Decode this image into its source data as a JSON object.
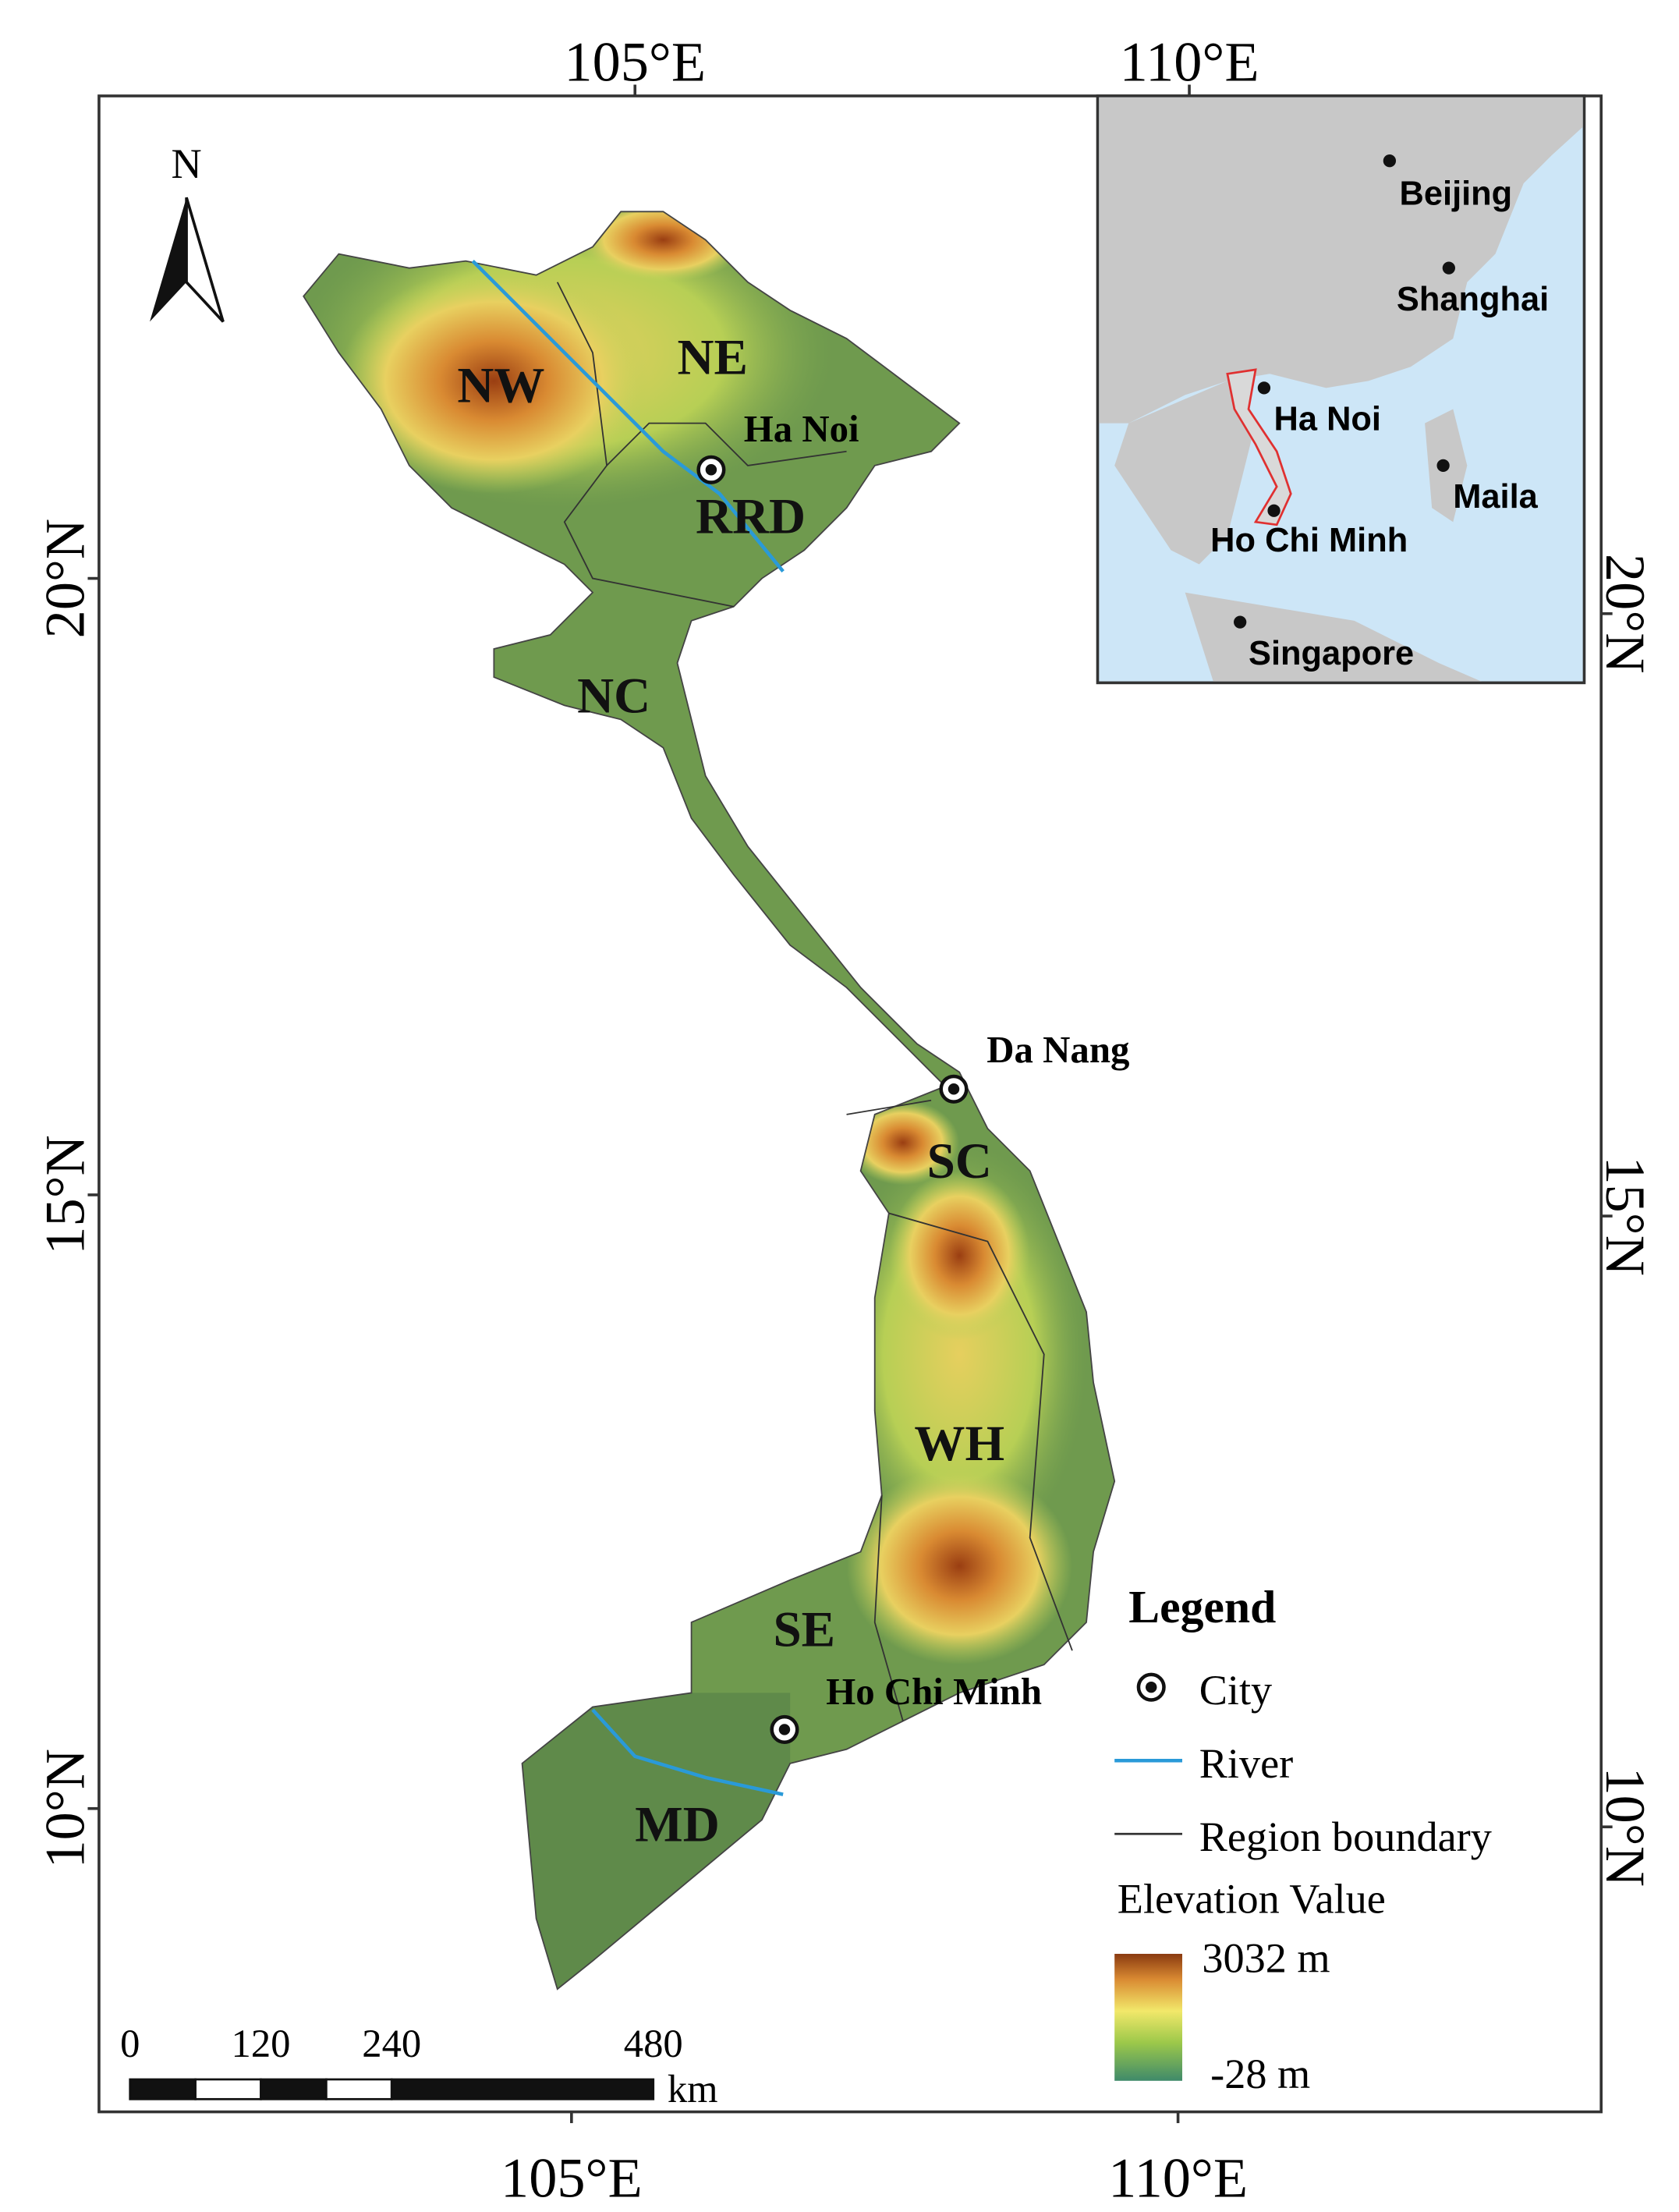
{
  "graticule": {
    "top": [
      "105°E",
      "110°E"
    ],
    "bottom": [
      "105°E",
      "110°E"
    ],
    "left": [
      "20°N",
      "15°N",
      "10°N"
    ],
    "right": [
      "20°N",
      "15°N",
      "10°N"
    ]
  },
  "north_arrow": "N",
  "regions": [
    "NW",
    "NE",
    "RRD",
    "NC",
    "SC",
    "WH",
    "SE",
    "MD"
  ],
  "cities": [
    "Ha Noi",
    "Da Nang",
    "Ho Chi Minh"
  ],
  "inset": {
    "cities": [
      "Beijing",
      "Shanghai",
      "Ha Noi",
      "Maila",
      "Ho Chi Minh",
      "Singapore"
    ]
  },
  "legend": {
    "title": "Legend",
    "items": [
      "City",
      "River",
      "Region boundary"
    ],
    "elevation_title": "Elevation Value",
    "max": "3032 m",
    "min": "-28 m"
  },
  "scale_bar": {
    "ticks": [
      0,
      120,
      240,
      480
    ],
    "unit": "km"
  }
}
